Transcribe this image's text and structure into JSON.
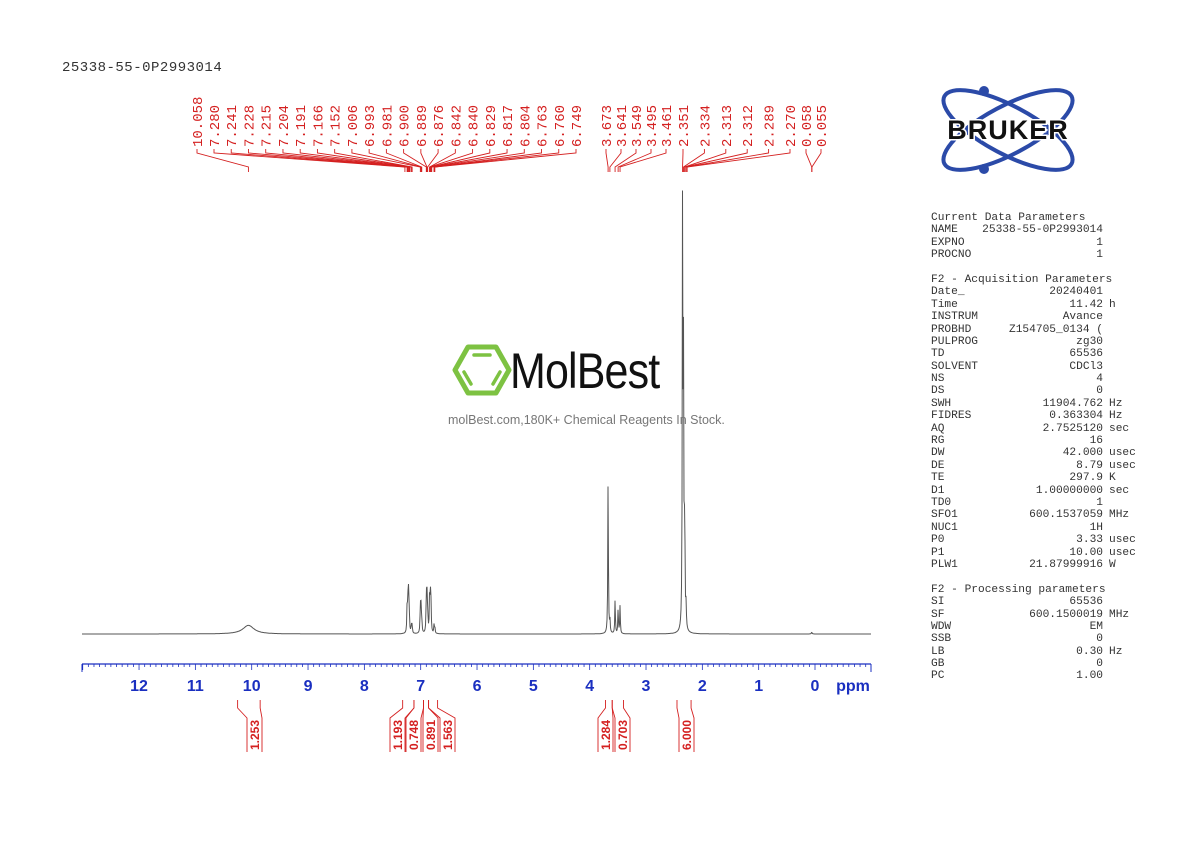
{
  "sample_id": "25338-55-0P2993014",
  "watermark": {
    "brand": "MolBest",
    "tagline": "molBest.com,180K+ Chemical Reagents In Stock.",
    "brand_color": "#7dc242"
  },
  "logo": {
    "text": "BRUKER",
    "orbit_color": "#2b4aa8"
  },
  "colors": {
    "peak_labels": "#d42020",
    "axis": "#1a2fc0",
    "spectrum": "#555555",
    "integrals": "#d42020"
  },
  "parameters": {
    "current": {
      "title": "Current Data Parameters",
      "rows": [
        {
          "key": "NAME",
          "value": "25338-55-0P2993014",
          "unit": ""
        },
        {
          "key": "EXPNO",
          "value": "1",
          "unit": ""
        },
        {
          "key": "PROCNO",
          "value": "1",
          "unit": ""
        }
      ]
    },
    "acquisition": {
      "title": "F2 - Acquisition Parameters",
      "rows": [
        {
          "key": "Date_",
          "value": "20240401",
          "unit": ""
        },
        {
          "key": "Time",
          "value": "11.42",
          "unit": "h"
        },
        {
          "key": "INSTRUM",
          "value": "Avance",
          "unit": ""
        },
        {
          "key": "PROBHD",
          "value": "Z154705_0134 (",
          "unit": ""
        },
        {
          "key": "PULPROG",
          "value": "zg30",
          "unit": ""
        },
        {
          "key": "TD",
          "value": "65536",
          "unit": ""
        },
        {
          "key": "SOLVENT",
          "value": "CDCl3",
          "unit": ""
        },
        {
          "key": "NS",
          "value": "4",
          "unit": ""
        },
        {
          "key": "DS",
          "value": "0",
          "unit": ""
        },
        {
          "key": "SWH",
          "value": "11904.762",
          "unit": "Hz"
        },
        {
          "key": "FIDRES",
          "value": "0.363304",
          "unit": "Hz"
        },
        {
          "key": "AQ",
          "value": "2.7525120",
          "unit": "sec"
        },
        {
          "key": "RG",
          "value": "16",
          "unit": ""
        },
        {
          "key": "DW",
          "value": "42.000",
          "unit": "usec"
        },
        {
          "key": "DE",
          "value": "8.79",
          "unit": "usec"
        },
        {
          "key": "TE",
          "value": "297.9",
          "unit": "K"
        },
        {
          "key": "D1",
          "value": "1.00000000",
          "unit": "sec"
        },
        {
          "key": "TD0",
          "value": "1",
          "unit": ""
        },
        {
          "key": "SFO1",
          "value": "600.1537059",
          "unit": "MHz"
        },
        {
          "key": "NUC1",
          "value": "1H",
          "unit": ""
        },
        {
          "key": "P0",
          "value": "3.33",
          "unit": "usec"
        },
        {
          "key": "P1",
          "value": "10.00",
          "unit": "usec"
        },
        {
          "key": "PLW1",
          "value": "21.87999916",
          "unit": "W"
        }
      ]
    },
    "processing": {
      "title": "F2 - Processing parameters",
      "rows": [
        {
          "key": "SI",
          "value": "65536",
          "unit": ""
        },
        {
          "key": "SF",
          "value": "600.1500019",
          "unit": "MHz"
        },
        {
          "key": "WDW",
          "value": "EM",
          "unit": ""
        },
        {
          "key": "SSB",
          "value": "0",
          "unit": ""
        },
        {
          "key": "LB",
          "value": "0.30",
          "unit": "Hz"
        },
        {
          "key": "GB",
          "value": "0",
          "unit": ""
        },
        {
          "key": "PC",
          "value": "1.00",
          "unit": ""
        }
      ]
    }
  },
  "chart_data": {
    "type": "line",
    "title": "25338-55-0P2993014",
    "xlabel": "ppm",
    "ylabel": "",
    "xlim": [
      13.0,
      -1.0
    ],
    "x_reversed": true,
    "grid": false,
    "ticks": [
      12,
      11,
      10,
      9,
      8,
      7,
      6,
      5,
      4,
      3,
      2,
      1,
      0
    ],
    "tick_labels": [
      "12",
      "11",
      "10",
      "9",
      "8",
      "7",
      "6",
      "5",
      "4",
      "3",
      "2",
      "1",
      "0"
    ],
    "peak_labels": [
      "10.058",
      "7.280",
      "7.241",
      "7.228",
      "7.215",
      "7.204",
      "7.191",
      "7.166",
      "7.152",
      "7.006",
      "6.993",
      "6.981",
      "6.900",
      "6.889",
      "6.876",
      "6.842",
      "6.840",
      "6.829",
      "6.817",
      "6.804",
      "6.763",
      "6.760",
      "6.749",
      "3.673",
      "3.641",
      "3.549",
      "3.495",
      "3.461",
      "2.351",
      "2.334",
      "2.313",
      "2.312",
      "2.289",
      "2.270",
      "0.058",
      "0.055"
    ],
    "peaks": [
      {
        "ppm": 10.058,
        "height": 0.02,
        "width": 0.12
      },
      {
        "ppm": 7.241,
        "height": 0.06
      },
      {
        "ppm": 7.228,
        "height": 0.08
      },
      {
        "ppm": 7.215,
        "height": 0.09
      },
      {
        "ppm": 7.204,
        "height": 0.05
      },
      {
        "ppm": 7.166,
        "height": 0.02
      },
      {
        "ppm": 7.152,
        "height": 0.02
      },
      {
        "ppm": 7.006,
        "height": 0.07
      },
      {
        "ppm": 6.993,
        "height": 0.06
      },
      {
        "ppm": 6.981,
        "height": 0.03
      },
      {
        "ppm": 6.9,
        "height": 0.09
      },
      {
        "ppm": 6.889,
        "height": 0.08
      },
      {
        "ppm": 6.876,
        "height": 0.05
      },
      {
        "ppm": 6.842,
        "height": 0.08
      },
      {
        "ppm": 6.829,
        "height": 0.1
      },
      {
        "ppm": 6.817,
        "height": 0.06
      },
      {
        "ppm": 6.763,
        "height": 0.02
      },
      {
        "ppm": 6.749,
        "height": 0.015
      },
      {
        "ppm": 3.673,
        "height": 0.37
      },
      {
        "ppm": 3.641,
        "height": 0.03
      },
      {
        "ppm": 3.549,
        "height": 0.08
      },
      {
        "ppm": 3.495,
        "height": 0.06
      },
      {
        "ppm": 3.461,
        "height": 0.065
      },
      {
        "ppm": 2.351,
        "height": 1.0
      },
      {
        "ppm": 2.334,
        "height": 0.6
      },
      {
        "ppm": 2.313,
        "height": 0.28
      },
      {
        "ppm": 2.289,
        "height": 0.05
      },
      {
        "ppm": 0.058,
        "height": 0.005
      }
    ],
    "integrals": [
      {
        "from": 10.25,
        "to": 9.85,
        "value": "1.253"
      },
      {
        "from": 7.32,
        "to": 7.12,
        "value": "1.193"
      },
      {
        "from": 7.12,
        "to": 6.95,
        "value": "0.748"
      },
      {
        "from": 6.95,
        "to": 6.86,
        "value": "0.891"
      },
      {
        "from": 6.86,
        "to": 6.7,
        "value": "1.563"
      },
      {
        "from": 3.72,
        "to": 3.6,
        "value": "1.284"
      },
      {
        "from": 3.6,
        "to": 3.4,
        "value": "0.703"
      },
      {
        "from": 2.45,
        "to": 2.2,
        "value": "6.000"
      }
    ]
  }
}
